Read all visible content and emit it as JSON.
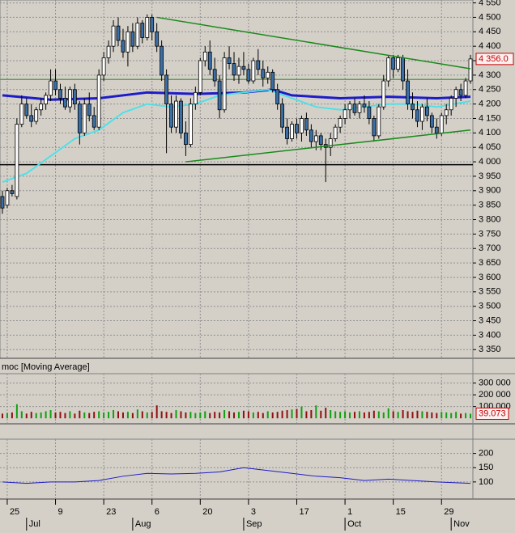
{
  "chart_data": {
    "type": "candlestick",
    "title": "moc [Moving Average]",
    "xlim": [
      -0.5,
      97.5
    ],
    "xticks": [
      {
        "value": 1,
        "label": "25"
      },
      {
        "value": 11,
        "label": "9"
      },
      {
        "value": 21,
        "label": "23"
      },
      {
        "value": 31,
        "label": "6"
      },
      {
        "value": 41,
        "label": "20"
      },
      {
        "value": 51,
        "label": "3"
      },
      {
        "value": 61,
        "label": "17"
      },
      {
        "value": 71,
        "label": "1"
      },
      {
        "value": 81,
        "label": "15"
      },
      {
        "value": 91,
        "label": "29"
      }
    ],
    "month_ticks": [
      {
        "value": 5,
        "label": "Jul"
      },
      {
        "value": 27,
        "label": "Aug"
      },
      {
        "value": 50,
        "label": "Sep"
      },
      {
        "value": 71,
        "label": "Oct"
      },
      {
        "value": 93,
        "label": "Nov"
      }
    ],
    "ylim": [
      3320,
      4560
    ],
    "yticks": [
      {
        "value": 4550,
        "label": "4 550"
      },
      {
        "value": 4500,
        "label": "4 500"
      },
      {
        "value": 4450,
        "label": "4 450"
      },
      {
        "value": 4400,
        "label": "4 400"
      },
      {
        "value": 4350,
        "label": "4 350"
      },
      {
        "value": 4300,
        "label": "4 300"
      },
      {
        "value": 4250,
        "label": "4 250"
      },
      {
        "value": 4200,
        "label": "4 200"
      },
      {
        "value": 4150,
        "label": "4 150"
      },
      {
        "value": 4100,
        "label": "4 100"
      },
      {
        "value": 4050,
        "label": "4 050"
      },
      {
        "value": 4000,
        "label": "4 000"
      },
      {
        "value": 3950,
        "label": "3 950"
      },
      {
        "value": 3900,
        "label": "3 900"
      },
      {
        "value": 3850,
        "label": "3 850"
      },
      {
        "value": 3800,
        "label": "3 800"
      },
      {
        "value": 3750,
        "label": "3 750"
      },
      {
        "value": 3700,
        "label": "3 700"
      },
      {
        "value": 3650,
        "label": "3 650"
      },
      {
        "value": 3600,
        "label": "3 600"
      },
      {
        "value": 3550,
        "label": "3 550"
      },
      {
        "value": 3500,
        "label": "3 500"
      },
      {
        "value": 3450,
        "label": "3 450"
      },
      {
        "value": 3400,
        "label": "3 400"
      },
      {
        "value": 3350,
        "label": "3 350"
      }
    ],
    "grid": true,
    "up_color": "#ffffff",
    "down_color": "#3a6ea5",
    "open": [
      3880,
      3850,
      3900,
      3880,
      4130,
      4200,
      4160,
      4140,
      4180,
      4200,
      4230,
      4280,
      4250,
      4220,
      4190,
      4250,
      4200,
      4100,
      4200,
      4160,
      4120,
      4300,
      4360,
      4400,
      4470,
      4420,
      4380,
      4450,
      4400,
      4480,
      4430,
      4500,
      4450,
      4400,
      4300,
      4200,
      4120,
      4210,
      4100,
      4060,
      4200,
      4240,
      4350,
      4380,
      4320,
      4280,
      4180,
      4360,
      4340,
      4300,
      4330,
      4320,
      4280,
      4350,
      4320,
      4290,
      4310,
      4250,
      4200,
      4120,
      4080,
      4130,
      4100,
      4150,
      4110,
      4070,
      4090,
      4060,
      4050,
      4080,
      4120,
      4150,
      4180,
      4200,
      4170,
      4200,
      4190,
      4150,
      4090,
      4190,
      4280,
      4360,
      4320,
      4360,
      4280,
      4200,
      4180,
      4140,
      4190,
      4160,
      4120,
      4100,
      4160,
      4180,
      4220,
      4250,
      4230,
      4280
    ],
    "high": [
      3900,
      3910,
      3920,
      4150,
      4230,
      4220,
      4200,
      4190,
      4220,
      4240,
      4320,
      4320,
      4270,
      4260,
      4260,
      4270,
      4210,
      4220,
      4240,
      4190,
      4320,
      4380,
      4420,
      4490,
      4500,
      4460,
      4470,
      4480,
      4500,
      4490,
      4510,
      4510,
      4480,
      4420,
      4320,
      4230,
      4230,
      4220,
      4140,
      4220,
      4260,
      4360,
      4400,
      4420,
      4360,
      4300,
      4380,
      4400,
      4380,
      4360,
      4380,
      4340,
      4360,
      4390,
      4350,
      4330,
      4320,
      4270,
      4220,
      4150,
      4140,
      4150,
      4160,
      4170,
      4130,
      4110,
      4100,
      4080,
      4100,
      4130,
      4160,
      4200,
      4210,
      4220,
      4210,
      4230,
      4210,
      4160,
      4200,
      4300,
      4370,
      4370,
      4370,
      4370,
      4320,
      4240,
      4210,
      4200,
      4220,
      4170,
      4150,
      4170,
      4200,
      4230,
      4260,
      4270,
      4290,
      4370
    ],
    "low": [
      3820,
      3840,
      3880,
      3870,
      4120,
      4150,
      4120,
      4130,
      4160,
      4180,
      4210,
      4230,
      4200,
      4180,
      4170,
      4180,
      4060,
      4090,
      4140,
      4110,
      4110,
      4280,
      4340,
      4380,
      4400,
      4360,
      4330,
      4380,
      4390,
      4410,
      4420,
      4420,
      4380,
      4280,
      4030,
      4100,
      4100,
      4080,
      4020,
      4050,
      4180,
      4230,
      4330,
      4300,
      4260,
      4150,
      4170,
      4320,
      4280,
      4270,
      4300,
      4270,
      4270,
      4300,
      4260,
      4270,
      4240,
      4180,
      4100,
      4060,
      4070,
      4080,
      4070,
      4090,
      4050,
      4040,
      4040,
      3930,
      4020,
      4070,
      4100,
      4130,
      4150,
      4160,
      4150,
      4170,
      4130,
      4070,
      4080,
      4180,
      4260,
      4290,
      4310,
      4250,
      4180,
      4150,
      4120,
      4110,
      4140,
      4100,
      4080,
      4090,
      4130,
      4160,
      4190,
      4210,
      4220,
      4270
    ],
    "close": [
      3840,
      3900,
      3890,
      4130,
      4200,
      4160,
      4140,
      4180,
      4200,
      4230,
      4280,
      4250,
      4220,
      4190,
      4250,
      4200,
      4100,
      4200,
      4160,
      4120,
      4300,
      4360,
      4400,
      4470,
      4420,
      4380,
      4450,
      4400,
      4480,
      4430,
      4500,
      4450,
      4400,
      4300,
      4200,
      4120,
      4210,
      4100,
      4060,
      4200,
      4240,
      4350,
      4380,
      4320,
      4280,
      4180,
      4360,
      4340,
      4300,
      4330,
      4320,
      4280,
      4350,
      4320,
      4290,
      4310,
      4250,
      4200,
      4120,
      4080,
      4130,
      4100,
      4150,
      4110,
      4070,
      4090,
      4060,
      4050,
      4080,
      4120,
      4150,
      4180,
      4200,
      4170,
      4200,
      4190,
      4150,
      4090,
      4190,
      4280,
      4360,
      4320,
      4360,
      4280,
      4200,
      4180,
      4140,
      4190,
      4160,
      4120,
      4100,
      4160,
      4180,
      4220,
      4250,
      4230,
      4280,
      4356
    ],
    "last_label": {
      "value": 4356,
      "label": "4 356.0"
    },
    "series": [
      {
        "color": "#1c1cc8",
        "x": [
          0,
          10,
          20,
          30,
          40,
          50,
          56,
          60,
          70,
          80,
          90,
          97
        ],
        "values": [
          4230,
          4215,
          4220,
          4240,
          4235,
          4240,
          4250,
          4230,
          4220,
          4225,
          4220,
          4225
        ]
      },
      {
        "color": "#50e0e8",
        "x": [
          0,
          5,
          10,
          15,
          20,
          25,
          30,
          35,
          40,
          45,
          50,
          55,
          60,
          65,
          70,
          75,
          80,
          85,
          90,
          97
        ],
        "values": [
          3930,
          3960,
          4020,
          4080,
          4110,
          4170,
          4200,
          4190,
          4200,
          4230,
          4240,
          4250,
          4220,
          4190,
          4180,
          4190,
          4200,
          4200,
          4190,
          4210
        ]
      }
    ],
    "trend_lines": [
      {
        "color": "#1a8a1a",
        "x": [
          32,
          97
        ],
        "values": [
          4500,
          4322
        ]
      },
      {
        "color": "#1a8a1a",
        "x": [
          38,
          97
        ],
        "values": [
          4000,
          4110
        ]
      }
    ],
    "hlines": [
      {
        "color": "#5aa05a",
        "value": 4285
      },
      {
        "color": "#000000",
        "value": 3990
      }
    ],
    "volume": {
      "ylim": [
        -40000,
        380000
      ],
      "up_color": "#10a010",
      "down_color": "#901010",
      "yticks": [
        {
          "value": 300000,
          "label": "300 000"
        },
        {
          "value": 200000,
          "label": "200 000"
        },
        {
          "value": 100000,
          "label": "100 000"
        }
      ],
      "values": [
        40000,
        45000,
        50000,
        120000,
        60000,
        40000,
        55000,
        45000,
        50000,
        60000,
        70000,
        50000,
        55000,
        45000,
        60000,
        40000,
        65000,
        50000,
        45000,
        55000,
        60000,
        50000,
        55000,
        70000,
        60000,
        50000,
        55000,
        45000,
        75000,
        60000,
        50000,
        55000,
        110000,
        60000,
        55000,
        45000,
        70000,
        60000,
        50000,
        55000,
        45000,
        50000,
        60000,
        45000,
        55000,
        50000,
        70000,
        60000,
        50000,
        55000,
        65000,
        60000,
        50000,
        55000,
        45000,
        60000,
        50000,
        55000,
        65000,
        70000,
        75000,
        80000,
        100000,
        60000,
        70000,
        110000,
        65000,
        90000,
        70000,
        60000,
        55000,
        60000,
        50000,
        55000,
        60000,
        50000,
        55000,
        65000,
        60000,
        50000,
        85000,
        60000,
        55000,
        70000,
        60000,
        55000,
        65000,
        60000,
        55000,
        50000,
        45000,
        55000,
        50000,
        45000,
        55000,
        40000,
        45000,
        39073
      ],
      "last_label": {
        "value": 39073,
        "label": "39.073"
      }
    },
    "indicator": {
      "ylim": [
        40,
        250
      ],
      "yticks": [
        200,
        150,
        100
      ],
      "color": "#1c1cc8",
      "x": [
        0,
        5,
        10,
        15,
        20,
        25,
        30,
        35,
        40,
        45,
        50,
        55,
        60,
        65,
        70,
        75,
        80,
        85,
        90,
        97
      ],
      "values": [
        100,
        95,
        100,
        100,
        105,
        120,
        130,
        128,
        130,
        135,
        150,
        140,
        130,
        120,
        115,
        105,
        110,
        105,
        100,
        95
      ]
    }
  }
}
